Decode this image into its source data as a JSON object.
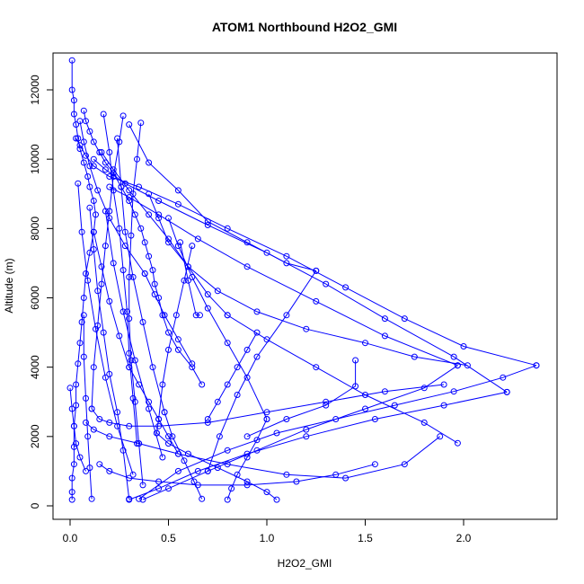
{
  "chart_data": {
    "type": "line",
    "title": "ATOM1 Northbound H2O2_GMI",
    "xlabel": "H2O2_GMI",
    "ylabel": "Altitude (m)",
    "xlim": [
      0,
      2.4
    ],
    "ylim": [
      0,
      13000
    ],
    "x_ticks": [
      0.0,
      0.5,
      1.0,
      1.5,
      2.0
    ],
    "x_tick_labels": [
      "0.0",
      "0.5",
      "1.0",
      "1.5",
      "2.0"
    ],
    "y_ticks": [
      0,
      2000,
      4000,
      6000,
      8000,
      10000,
      12000
    ],
    "y_tick_labels": [
      "0",
      "2000",
      "4000",
      "6000",
      "8000",
      "10000",
      "12000"
    ],
    "grid": false,
    "marker": "open-circle",
    "color": "#0000ff",
    "series": [
      {
        "x": [
          0.01,
          0.01,
          0.02,
          0.02,
          0.03,
          0.04,
          0.05,
          0.07,
          0.09,
          0.1,
          0.12,
          0.13,
          0.12,
          0.1,
          0.08,
          0.07,
          0.06,
          0.05,
          0.04,
          0.03,
          0.03,
          0.02,
          0.02,
          0.02,
          0.01,
          0.01,
          0.01
        ],
        "y": [
          12850,
          12000,
          11700,
          11300,
          11000,
          10600,
          10300,
          9900,
          9500,
          9200,
          8800,
          8400,
          7900,
          7300,
          6700,
          6000,
          5300,
          4700,
          4100,
          3500,
          2900,
          2300,
          1700,
          1200,
          800,
          400,
          180
        ]
      },
      {
        "x": [
          0.07,
          0.08,
          0.1,
          0.12,
          0.15,
          0.18,
          0.22,
          0.26,
          0.3,
          0.33,
          0.36,
          0.38,
          0.4,
          0.42,
          0.43,
          0.45,
          0.47,
          0.5,
          0.55,
          0.62,
          0.67
        ],
        "y": [
          11400,
          11100,
          10800,
          10500,
          10200,
          9900,
          9600,
          9200,
          8800,
          8400,
          8000,
          7600,
          7200,
          6800,
          6400,
          6000,
          5500,
          5000,
          4500,
          4000,
          3500
        ]
      },
      {
        "x": [
          0.03,
          0.05,
          0.08,
          0.12,
          0.2,
          0.35,
          0.55,
          0.8,
          1.1,
          1.4,
          1.7,
          2.0,
          2.37
        ],
        "y": [
          10600,
          10400,
          10100,
          9800,
          9500,
          9200,
          8700,
          8000,
          7200,
          6300,
          5400,
          4600,
          4050
        ]
      },
      {
        "x": [
          2.37,
          2.2,
          1.95,
          1.65,
          1.35,
          1.05,
          0.8,
          0.55,
          0.35
        ],
        "y": [
          4050,
          3700,
          3300,
          2900,
          2500,
          2100,
          1600,
          1000,
          200
        ]
      },
      {
        "x": [
          0.12,
          0.18,
          0.28,
          0.45,
          0.7,
          1.0,
          1.3,
          1.6,
          1.95,
          2.22
        ],
        "y": [
          10000,
          9700,
          9300,
          8800,
          8100,
          7300,
          6400,
          5400,
          4300,
          3280
        ]
      },
      {
        "x": [
          2.22,
          1.9,
          1.55,
          1.2,
          0.9,
          0.65,
          0.45,
          0.3
        ],
        "y": [
          3280,
          2900,
          2500,
          2000,
          1500,
          1000,
          500,
          180
        ]
      },
      {
        "x": [
          0.2,
          0.3,
          0.45,
          0.65,
          0.9,
          1.25,
          1.6,
          1.97
        ],
        "y": [
          9200,
          8900,
          8400,
          7700,
          6900,
          5900,
          4900,
          4050
        ]
      },
      {
        "x": [
          1.97,
          1.8,
          1.5,
          1.2,
          0.95,
          0.7,
          0.5,
          0.37
        ],
        "y": [
          4050,
          3400,
          2800,
          2200,
          1600,
          1000,
          500,
          180
        ]
      },
      {
        "x": [
          0.16,
          0.22,
          0.3,
          0.4,
          0.5,
          0.6,
          0.7,
          0.8
        ],
        "y": [
          10200,
          9700,
          9100,
          8400,
          7700,
          6900,
          6100,
          5500
        ]
      },
      {
        "x": [
          0.8,
          1.0,
          1.25,
          1.5,
          1.8,
          1.97
        ],
        "y": [
          5500,
          4800,
          4000,
          3200,
          2400,
          1810
        ]
      },
      {
        "x": [
          0.3,
          0.4,
          0.55,
          0.7,
          0.9,
          1.1,
          1.25
        ],
        "y": [
          11000,
          9900,
          9100,
          8200,
          7600,
          7000,
          6780
        ]
      },
      {
        "x": [
          1.25,
          1.1,
          0.95,
          0.85,
          0.76,
          0.7
        ],
        "y": [
          6780,
          5500,
          4300,
          3200,
          2000,
          1000
        ]
      },
      {
        "x": [
          0.4,
          0.45,
          0.5,
          0.6,
          0.75,
          0.95,
          1.2,
          1.5,
          1.75,
          2.02
        ],
        "y": [
          9000,
          8300,
          7600,
          6900,
          6200,
          5600,
          5100,
          4700,
          4300,
          4050
        ]
      },
      {
        "x": [
          0.27,
          0.25,
          0.22,
          0.2,
          0.18,
          0.16,
          0.14,
          0.12,
          0.11
        ],
        "y": [
          11250,
          10500,
          9500,
          8500,
          7500,
          6400,
          5200,
          4000,
          2800
        ]
      },
      {
        "x": [
          0.11,
          0.15,
          0.2,
          0.3,
          0.45,
          0.7,
          1.0,
          1.3,
          1.6,
          1.9
        ],
        "y": [
          2800,
          2500,
          2400,
          2300,
          2300,
          2400,
          2700,
          3000,
          3300,
          3500
        ]
      },
      {
        "x": [
          0.36,
          0.34,
          0.32,
          0.31,
          0.3,
          0.3,
          0.31,
          0.33,
          0.35,
          0.37
        ],
        "y": [
          11050,
          10000,
          9000,
          7800,
          6600,
          5400,
          4200,
          3000,
          1800,
          600
        ]
      },
      {
        "x": [
          0.17,
          0.2,
          0.22,
          0.25,
          0.27,
          0.29,
          0.3,
          0.32,
          0.34
        ],
        "y": [
          11300,
          10200,
          9100,
          8000,
          6800,
          5600,
          4400,
          3100,
          1800
        ]
      },
      {
        "x": [
          0.1,
          0.12,
          0.14,
          0.17,
          0.2,
          0.24,
          0.27,
          0.3
        ],
        "y": [
          8600,
          7400,
          6200,
          5000,
          3800,
          2700,
          1600,
          200
        ]
      },
      {
        "x": [
          0.5,
          0.55,
          0.62,
          0.7,
          0.8,
          0.9,
          1.0
        ],
        "y": [
          8300,
          7500,
          6600,
          5700,
          4700,
          3700,
          2500
        ]
      },
      {
        "x": [
          1.0,
          0.95,
          0.9,
          0.85,
          0.82,
          0.8
        ],
        "y": [
          2500,
          1900,
          1400,
          900,
          500,
          180
        ]
      },
      {
        "x": [
          0.08,
          0.12,
          0.2,
          0.35,
          0.55,
          0.8,
          1.1,
          1.4,
          1.7,
          1.88
        ],
        "y": [
          2400,
          2200,
          2000,
          1800,
          1500,
          1200,
          900,
          800,
          1200,
          2000
        ]
      },
      {
        "x": [
          0.15,
          0.2,
          0.3,
          0.45,
          0.65,
          0.9,
          1.15,
          1.35,
          1.55
        ],
        "y": [
          1200,
          1000,
          800,
          700,
          600,
          600,
          700,
          900,
          1200
        ]
      },
      {
        "x": [
          0.62,
          0.58,
          0.54,
          0.5,
          0.47,
          0.45,
          0.44
        ],
        "y": [
          7500,
          6500,
          5500,
          4500,
          3500,
          2500,
          2100
        ]
      },
      {
        "x": [
          0.44,
          0.5,
          0.6,
          0.75,
          0.9,
          1.0,
          1.05
        ],
        "y": [
          2100,
          1800,
          1500,
          1100,
          700,
          400,
          180
        ]
      },
      {
        "x": [
          0.04,
          0.06,
          0.09,
          0.13,
          0.18,
          0.24,
          0.32
        ],
        "y": [
          9300,
          7900,
          6500,
          5100,
          3700,
          2300,
          900
        ]
      },
      {
        "x": [
          0.07,
          0.07,
          0.08,
          0.09,
          0.1,
          0.11
        ],
        "y": [
          5500,
          4300,
          3100,
          2000,
          1100,
          200
        ]
      },
      {
        "x": [
          0.24,
          0.26,
          0.28,
          0.32,
          0.37,
          0.42,
          0.48
        ],
        "y": [
          10600,
          9200,
          7900,
          6600,
          5300,
          4000,
          2700
        ]
      },
      {
        "x": [
          0.48,
          0.52,
          0.58,
          0.63,
          0.67
        ],
        "y": [
          2700,
          2000,
          1300,
          700,
          200
        ]
      },
      {
        "x": [
          0.12,
          0.16,
          0.2,
          0.25,
          0.3
        ],
        "y": [
          7900,
          6900,
          5900,
          4900,
          4000
        ]
      },
      {
        "x": [
          0.3,
          0.35,
          0.4,
          0.45,
          0.5,
          0.55
        ],
        "y": [
          4000,
          3500,
          3000,
          2500,
          2000,
          1500
        ]
      },
      {
        "x": [
          0.95,
          0.9,
          0.85,
          0.8,
          0.75,
          0.7
        ],
        "y": [
          5000,
          4500,
          4000,
          3500,
          3000,
          2500
        ]
      },
      {
        "x": [
          0.0,
          0.01,
          0.02,
          0.03,
          0.05,
          0.08
        ],
        "y": [
          3400,
          2800,
          2300,
          1800,
          1400,
          1000
        ]
      },
      {
        "x": [
          0.18,
          0.22,
          0.27,
          0.33,
          0.4,
          0.47
        ],
        "y": [
          8500,
          7000,
          5600,
          4200,
          2800,
          1400
        ]
      },
      {
        "x": [
          0.05,
          0.07,
          0.1,
          0.14,
          0.2,
          0.28,
          0.38
        ],
        "y": [
          11100,
          10500,
          9800,
          9100,
          8300,
          7500,
          6700
        ]
      },
      {
        "x": [
          0.38,
          0.43,
          0.48,
          0.55,
          0.62
        ],
        "y": [
          6700,
          6100,
          5500,
          4800,
          4100
        ]
      },
      {
        "x": [
          0.56,
          0.6,
          0.64,
          0.66
        ],
        "y": [
          7600,
          6500,
          5500,
          5500
        ]
      },
      {
        "x": [
          1.45,
          1.45,
          1.3,
          1.1,
          0.9
        ],
        "y": [
          4200,
          3450,
          2900,
          2500,
          2000
        ]
      }
    ]
  }
}
